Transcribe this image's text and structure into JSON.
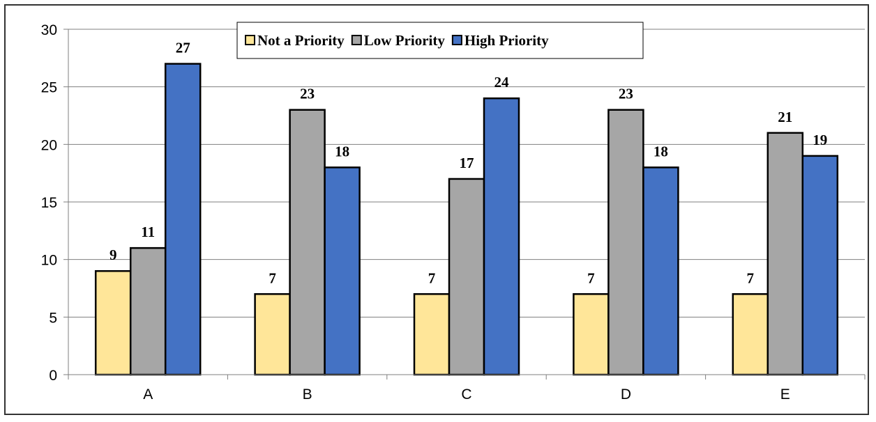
{
  "chart_data": {
    "type": "bar",
    "title": "",
    "xlabel": "",
    "ylabel": "",
    "categories": [
      "A",
      "B",
      "C",
      "D",
      "E"
    ],
    "series": [
      {
        "name": "Not a Priority",
        "color": "#FFE699",
        "values": [
          9,
          7,
          7,
          7,
          7
        ]
      },
      {
        "name": "Low Priority",
        "color": "#A6A6A6",
        "values": [
          11,
          23,
          17,
          23,
          21
        ]
      },
      {
        "name": "High Priority",
        "color": "#4472C4",
        "values": [
          27,
          18,
          24,
          18,
          19
        ]
      }
    ],
    "ylim": [
      0,
      30
    ],
    "yticks": [
      0,
      5,
      10,
      15,
      20,
      25,
      30
    ],
    "grid": true,
    "legend_position": "top-center",
    "data_labels": true
  }
}
